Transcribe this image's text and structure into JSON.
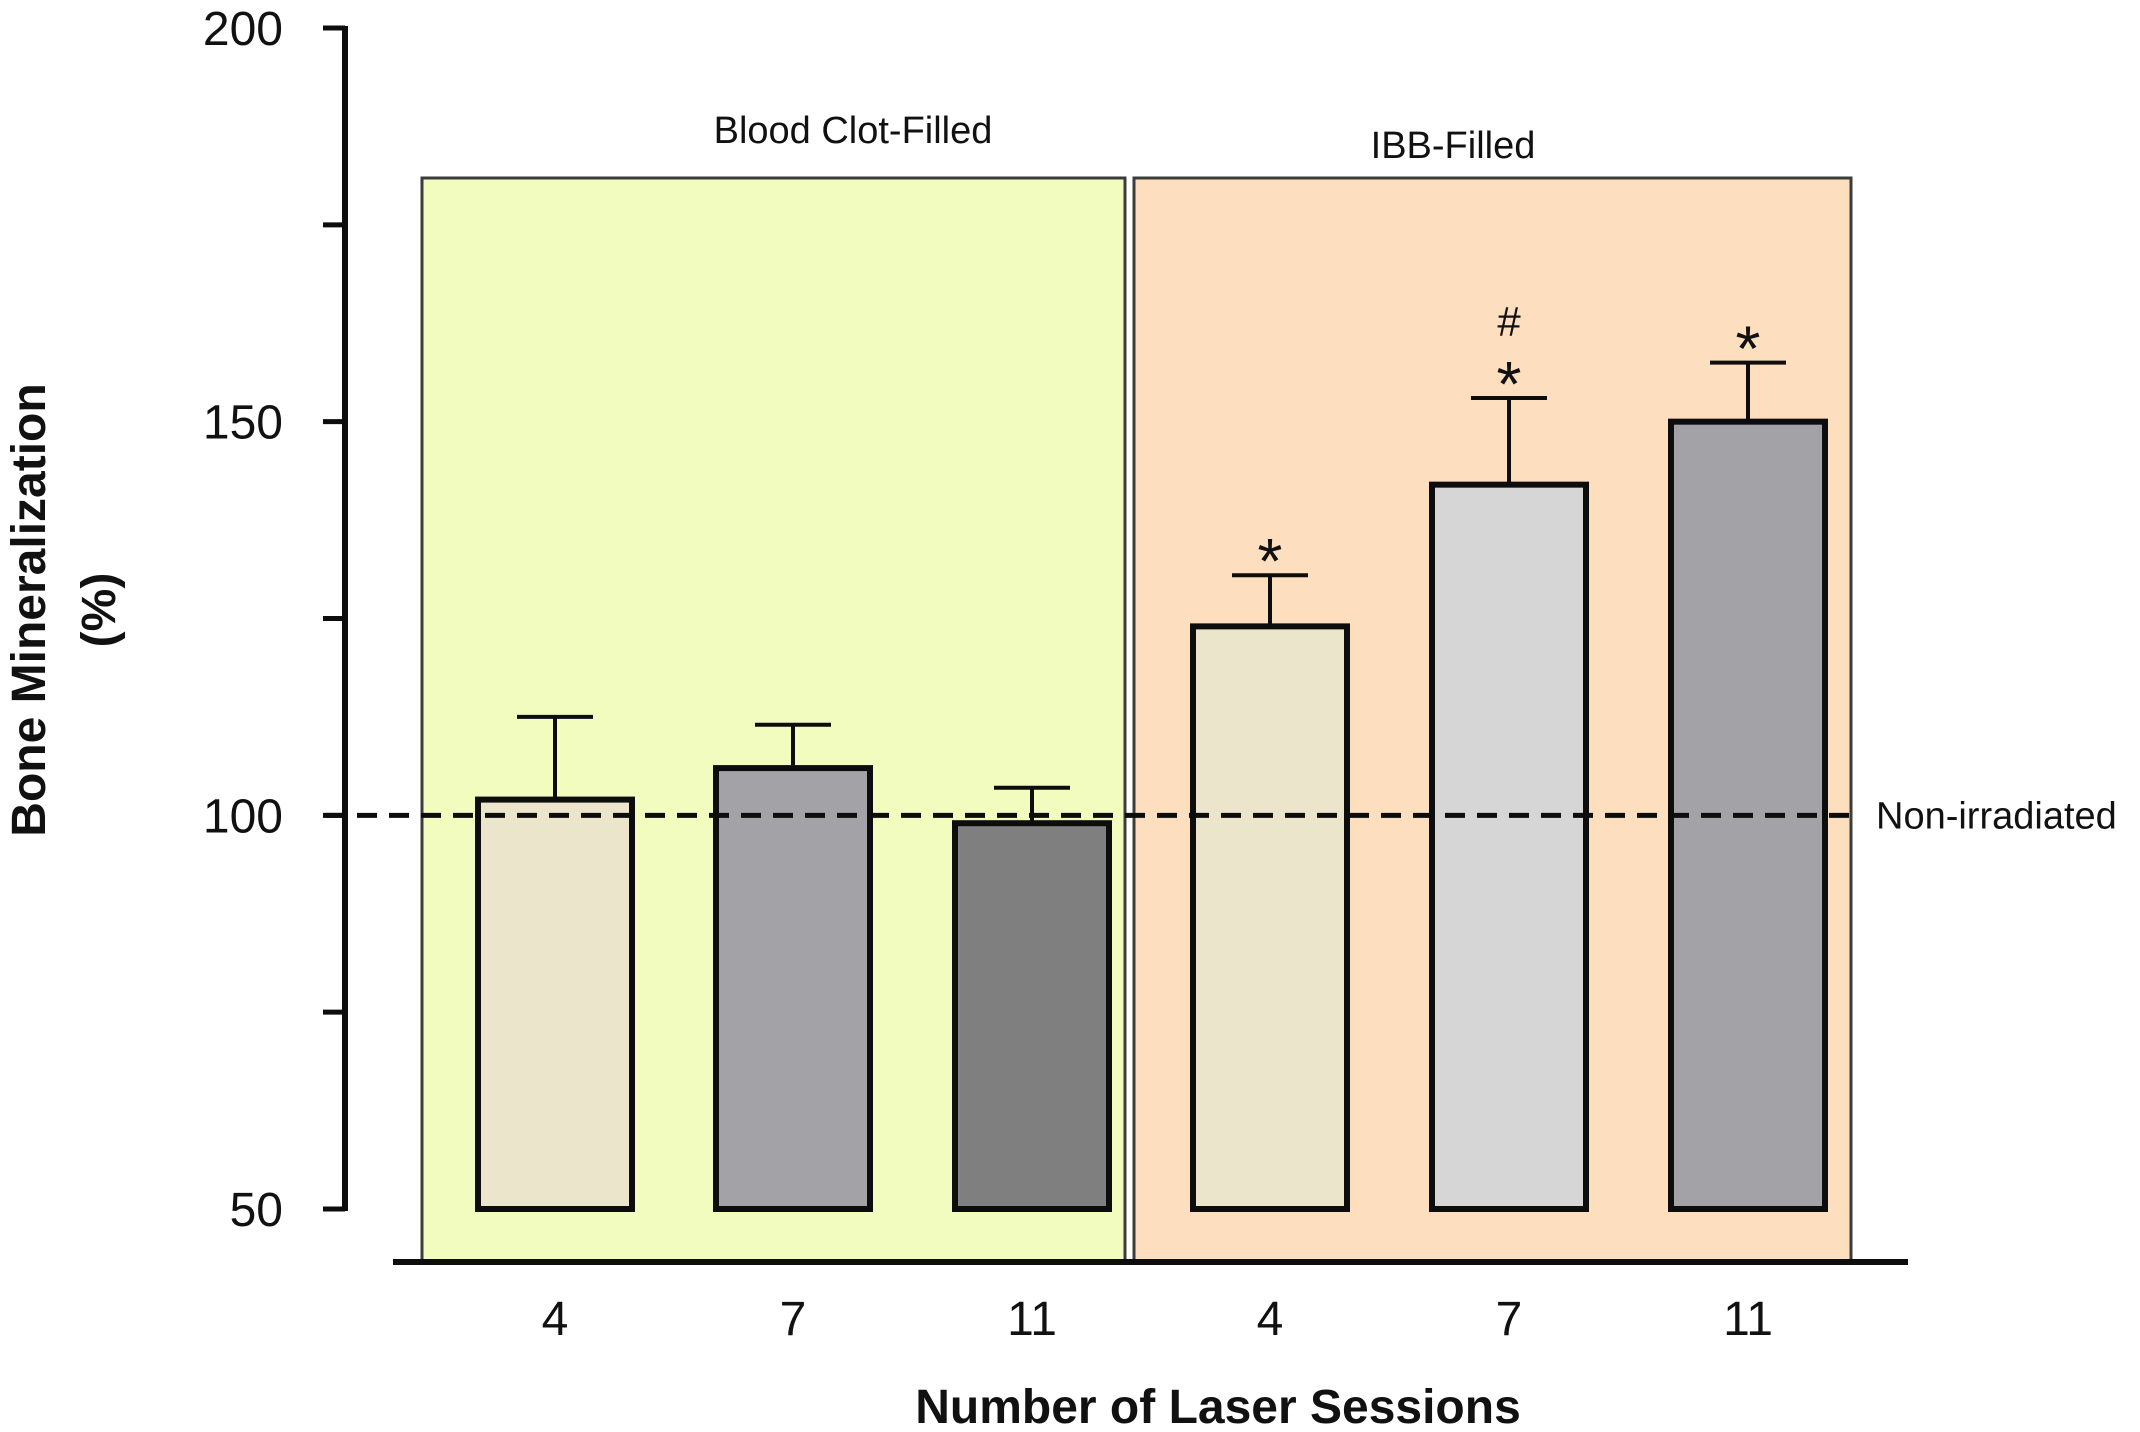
{
  "chart_data": {
    "type": "bar",
    "xlabel": "Number of Laser Sessions",
    "ylabel": [
      "Bone Mineralization",
      "(%)"
    ],
    "ylim": [
      50,
      200
    ],
    "yticks": [
      50,
      100,
      150,
      200
    ],
    "grid": false,
    "groups": [
      {
        "label": "Blood Clot-Filled",
        "color": "#f2fcbe"
      },
      {
        "label": "IBB-Filled",
        "color": "#fddfc0"
      }
    ],
    "categories": [
      "4",
      "7",
      "11",
      "4",
      "7",
      "11"
    ],
    "bars": [
      {
        "group": 0,
        "label": "4",
        "value": 102,
        "error": 10.5,
        "color": "#ebe6cb",
        "annotation": []
      },
      {
        "group": 0,
        "label": "7",
        "value": 106,
        "error": 5.5,
        "color": "#a3a2a6",
        "annotation": []
      },
      {
        "group": 0,
        "label": "11",
        "value": 99,
        "error": 4.5,
        "color": "#7f7f7f",
        "annotation": []
      },
      {
        "group": 1,
        "label": "4",
        "value": 124,
        "error": 6.5,
        "color": "#ebe6cb",
        "annotation": [
          "*"
        ]
      },
      {
        "group": 1,
        "label": "7",
        "value": 142,
        "error": 11,
        "color": "#d6d6d6",
        "annotation": [
          "#",
          "*"
        ]
      },
      {
        "group": 1,
        "label": "11",
        "value": 150,
        "error": 7.5,
        "color": "#a3a2a6",
        "annotation": [
          "*"
        ]
      }
    ],
    "reference_line": {
      "value": 100,
      "label": "Non-irradiated",
      "style": "dashed"
    }
  }
}
